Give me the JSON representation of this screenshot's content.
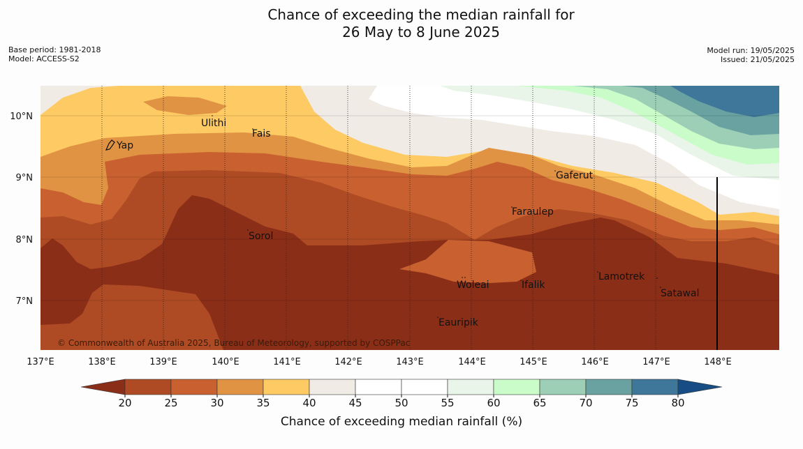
{
  "title": {
    "line1": "Chance of exceeding the median rainfall for",
    "line2": "26 May to 8 June 2025"
  },
  "meta_left": {
    "base_period": "Base period: 1981-2018",
    "model": "Model: ACCESS-S2"
  },
  "meta_right": {
    "model_run": "Model run: 19/05/2025",
    "issued": "Issued: 21/05/2025"
  },
  "map": {
    "copyright": "© Commonwealth of Australia 2025, Bureau of Meteorology, supported by COSPPac",
    "longitude_labels": [
      "137°E",
      "138°E",
      "139°E",
      "140°E",
      "141°E",
      "142°E",
      "143°E",
      "144°E",
      "145°E",
      "146°E",
      "147°E",
      "148°E"
    ],
    "latitude_labels": [
      "10°N",
      "9°N",
      "8°N",
      "7°N"
    ],
    "places": [
      "Yap",
      "Ulithi",
      "Fais",
      "Sorol",
      "Gaferut",
      "Faraulep",
      "Woleai",
      "Ifalik",
      "Lamotrek",
      "Satawal",
      "Eauripik"
    ]
  },
  "colorbar": {
    "ticks": [
      "20",
      "25",
      "30",
      "35",
      "40",
      "45",
      "50",
      "55",
      "60",
      "65",
      "70",
      "75",
      "80"
    ],
    "colors": [
      "#ae4b24",
      "#c8612f",
      "#e09343",
      "#fdca63",
      "#f0ebe5",
      "#ffffff",
      "#ffffff",
      "#e8f5e8",
      "#c9fcc9",
      "#9ccfb6",
      "#6aa2a2",
      "#3f779a"
    ],
    "low_color": "#8b2e18",
    "high_color": "#174d84",
    "label": "Chance of exceeding median rainfall (%)"
  }
}
